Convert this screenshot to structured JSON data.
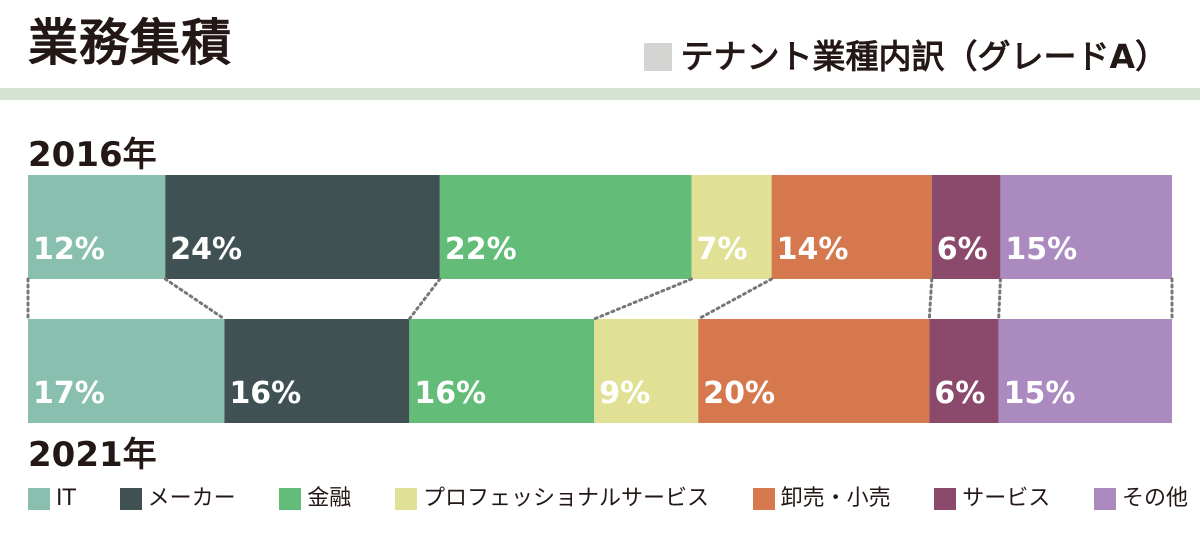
{
  "header": {
    "title": "業務集積",
    "subtitle": "テナント業種内訳（グレードA）"
  },
  "chart_data": {
    "type": "bar",
    "orientation": "horizontal-stacked-100",
    "categories": [
      "2016年",
      "2021年"
    ],
    "series": [
      {
        "name": "IT",
        "color": "#88bfaf",
        "values": [
          12,
          17
        ]
      },
      {
        "name": "メーカー",
        "color": "#3f5152",
        "values": [
          24,
          16
        ]
      },
      {
        "name": "金融",
        "color": "#63bc77",
        "values": [
          22,
          16
        ]
      },
      {
        "name": "プロフェッショナルサービス",
        "color": "#e1e195",
        "values": [
          7,
          9
        ]
      },
      {
        "name": "卸売・小売",
        "color": "#d6784d",
        "values": [
          14,
          20
        ]
      },
      {
        "name": "サービス",
        "color": "#8b496c",
        "values": [
          6,
          6
        ]
      },
      {
        "name": "その他",
        "color": "#ab8ac0",
        "values": [
          15,
          15
        ]
      }
    ],
    "data_labels": [
      [
        "12%",
        "24%",
        "22%",
        "7%",
        "14%",
        "6%",
        "15%"
      ],
      [
        "17%",
        "16%",
        "16%",
        "9%",
        "20%",
        "6%",
        "15%"
      ]
    ],
    "legend_position": "bottom",
    "grid": false
  }
}
